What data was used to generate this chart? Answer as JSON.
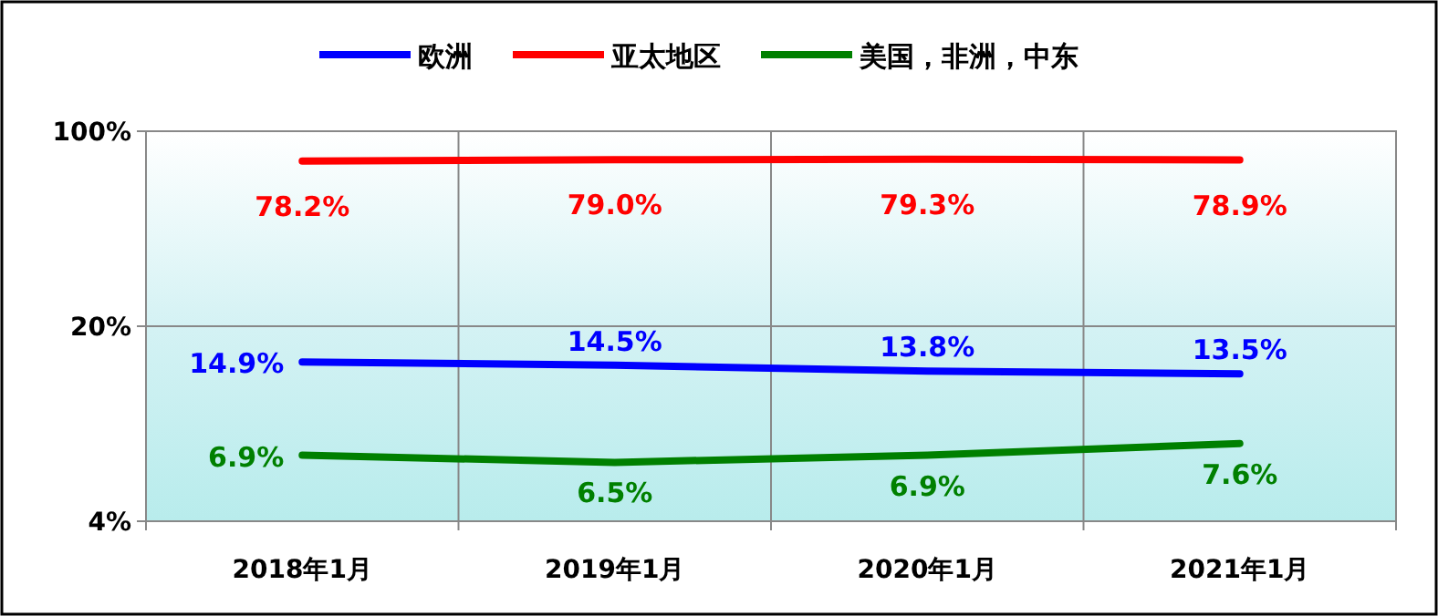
{
  "chart_data": {
    "type": "line",
    "categories": [
      "2018年1月",
      "2019年1月",
      "2020年1月",
      "2021年1月"
    ],
    "series": [
      {
        "name": "欧洲",
        "color": "#0000ff",
        "values": [
          14.9,
          14.5,
          13.8,
          13.5
        ],
        "value_labels": [
          "14.9%",
          "14.5%",
          "13.8%",
          "13.5%"
        ]
      },
      {
        "name": "亚太地区",
        "color": "#ff0000",
        "values": [
          78.2,
          79.0,
          79.3,
          78.9
        ],
        "value_labels": [
          "78.2%",
          "79.0%",
          "79.3%",
          "78.9%"
        ]
      },
      {
        "name": "美国，非洲，中东",
        "color": "#008000",
        "values": [
          6.9,
          6.5,
          6.9,
          7.6
        ],
        "value_labels": [
          "6.9%",
          "6.5%",
          "6.9%",
          "7.6%"
        ]
      }
    ],
    "log": "y",
    "ylim": [
      4,
      100
    ],
    "yticks": [
      {
        "value": 4,
        "label": "4%"
      },
      {
        "value": 20,
        "label": "20%"
      },
      {
        "value": 100,
        "label": "100%"
      }
    ],
    "grid": true,
    "legend": "top",
    "marker": "none",
    "line_style": "solid"
  }
}
